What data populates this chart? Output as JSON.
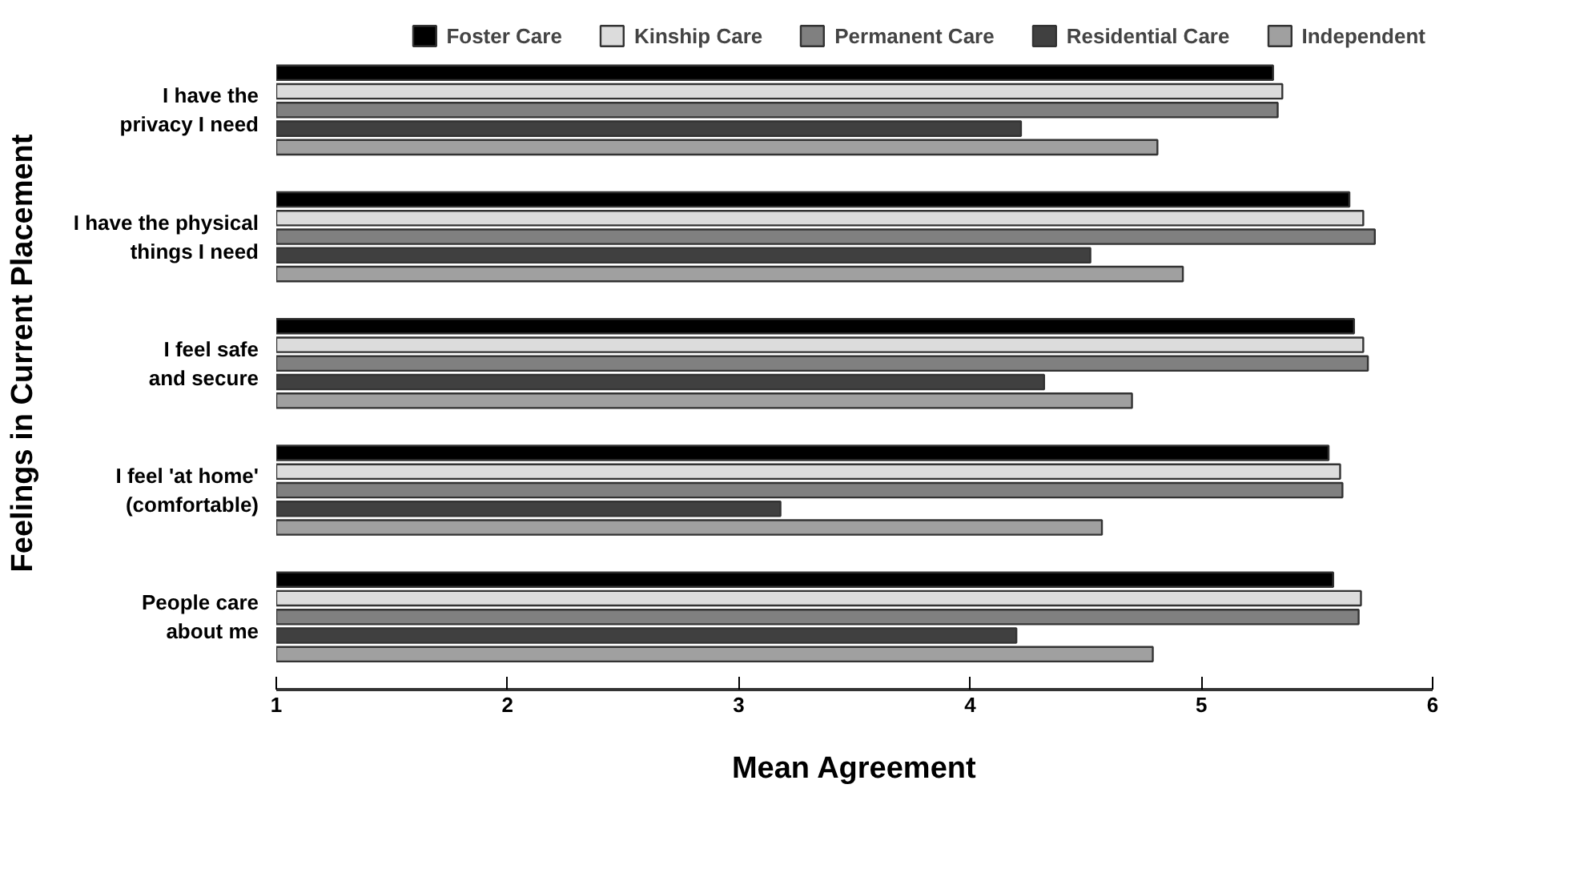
{
  "chart_data": {
    "type": "bar",
    "orientation": "horizontal",
    "xlabel": "Mean Agreement",
    "ylabel": "Feelings in Current Placement",
    "categories": [
      "I have the\nprivacy I need",
      "I have the physical\nthings I need",
      "I feel safe\nand secure",
      "I feel 'at home'\n(comfortable)",
      "People care\nabout me"
    ],
    "series": [
      {
        "name": "Foster Care",
        "color": "#000000",
        "values": [
          5.31,
          5.64,
          5.66,
          5.55,
          5.57
        ]
      },
      {
        "name": "Kinship Care",
        "color": "#dcdcdc",
        "values": [
          5.35,
          5.7,
          5.7,
          5.6,
          5.69
        ]
      },
      {
        "name": "Permanent Care",
        "color": "#808080",
        "values": [
          5.33,
          5.75,
          5.72,
          5.61,
          5.68
        ]
      },
      {
        "name": "Residential Care",
        "color": "#404040",
        "values": [
          4.22,
          4.52,
          4.32,
          3.18,
          4.2
        ]
      },
      {
        "name": "Independent",
        "color": "#a0a0a0",
        "values": [
          4.81,
          4.92,
          4.7,
          4.57,
          4.79
        ]
      }
    ],
    "xlim": [
      1,
      6
    ],
    "xticks": [
      1,
      2,
      3,
      4,
      5,
      6
    ],
    "grid": false,
    "legend": "top"
  }
}
